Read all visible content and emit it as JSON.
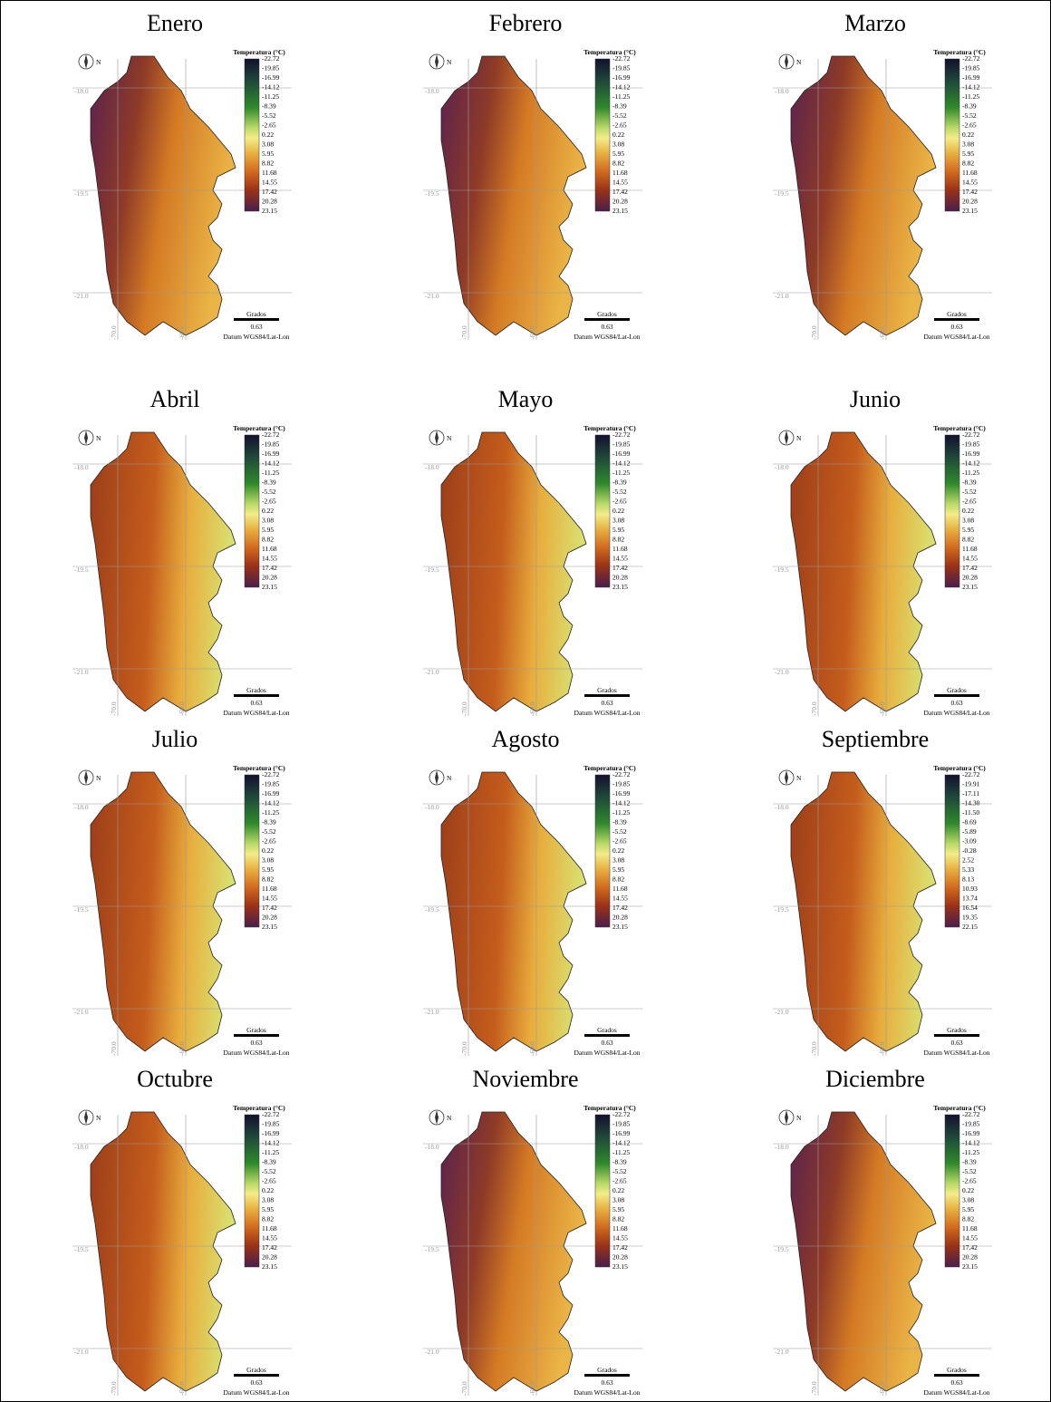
{
  "panels": [
    {
      "title": "Enero",
      "legend": [
        "-22.72",
        "-19.85",
        "-16.99",
        "-14.12",
        "-11.25",
        "-8.39",
        "-5.52",
        "-2.65",
        "0.22",
        "3.08",
        "5.95",
        "8.82",
        "11.68",
        "14.55",
        "17.42",
        "20.28",
        "23.15"
      ]
    },
    {
      "title": "Febrero",
      "legend": [
        "-22.72",
        "-19.85",
        "-16.99",
        "-14.12",
        "-11.25",
        "-8.39",
        "-5.52",
        "-2.65",
        "0.22",
        "3.08",
        "5.95",
        "8.82",
        "11.68",
        "14.55",
        "17.42",
        "20.28",
        "23.15"
      ]
    },
    {
      "title": "Marzo",
      "legend": [
        "-22.72",
        "-19.85",
        "-16.99",
        "-14.12",
        "-11.25",
        "-8.39",
        "-5.52",
        "-2.65",
        "0.22",
        "3.08",
        "5.95",
        "8.82",
        "11.68",
        "14.55",
        "17.42",
        "20.28",
        "23.15"
      ]
    },
    {
      "title": "Abril",
      "legend": [
        "-22.72",
        "-19.85",
        "-16.99",
        "-14.12",
        "-11.25",
        "-8.39",
        "-5.52",
        "-2.65",
        "0.22",
        "3.08",
        "5.95",
        "8.82",
        "11.68",
        "14.55",
        "17.42",
        "20.28",
        "23.15"
      ]
    },
    {
      "title": "Mayo",
      "legend": [
        "-22.72",
        "-19.85",
        "-16.99",
        "-14.12",
        "-11.25",
        "-8.39",
        "-5.52",
        "-2.65",
        "0.22",
        "3.08",
        "5.95",
        "8.82",
        "11.68",
        "14.55",
        "17.42",
        "20.28",
        "23.15"
      ]
    },
    {
      "title": "Junio",
      "legend": [
        "-22.72",
        "-19.85",
        "-16.99",
        "-14.12",
        "-11.25",
        "-8.39",
        "-5.52",
        "-2.65",
        "0.22",
        "3.08",
        "5.95",
        "8.82",
        "11.68",
        "14.55",
        "17.42",
        "20.28",
        "23.15"
      ]
    },
    {
      "title": "Julio",
      "legend": [
        "-22.72",
        "-19.85",
        "-16.99",
        "-14.12",
        "-11.25",
        "-8.39",
        "-5.52",
        "-2.65",
        "0.22",
        "3.08",
        "5.95",
        "8.82",
        "11.68",
        "14.55",
        "17.42",
        "20.28",
        "23.15"
      ]
    },
    {
      "title": "Agosto",
      "legend": [
        "-22.72",
        "-19.85",
        "-16.99",
        "-14.12",
        "-11.25",
        "-8.39",
        "-5.52",
        "-2.65",
        "0.22",
        "3.08",
        "5.95",
        "8.82",
        "11.68",
        "14.55",
        "17.42",
        "20.28",
        "23.15"
      ]
    },
    {
      "title": "Septiembre",
      "legend": [
        "-22.72",
        "-19.91",
        "-17.11",
        "-14.30",
        "-11.50",
        "-8.69",
        "-5.89",
        "-3.09",
        "-0.28",
        "2.52",
        "5.33",
        "8.13",
        "10.93",
        "13.74",
        "16.54",
        "19.35",
        "22.15"
      ]
    },
    {
      "title": "Octubre",
      "legend": [
        "-22.72",
        "-19.85",
        "-16.99",
        "-14.12",
        "-11.25",
        "-8.39",
        "-5.52",
        "-2.65",
        "0.22",
        "3.08",
        "5.95",
        "8.82",
        "11.68",
        "14.55",
        "17.42",
        "20.28",
        "23.15"
      ]
    },
    {
      "title": "Noviembre",
      "legend": [
        "-22.72",
        "-19.85",
        "-16.99",
        "-14.12",
        "-11.25",
        "-8.39",
        "-5.52",
        "-2.65",
        "0.22",
        "3.08",
        "5.95",
        "8.82",
        "11.68",
        "14.55",
        "17.42",
        "20.28",
        "23.15"
      ]
    },
    {
      "title": "Diciembre",
      "legend": [
        "-22.72",
        "-19.85",
        "-16.99",
        "-14.12",
        "-11.25",
        "-8.39",
        "-5.52",
        "-2.65",
        "0.22",
        "3.08",
        "5.95",
        "8.82",
        "11.68",
        "14.55",
        "17.42",
        "20.28",
        "23.15"
      ]
    }
  ],
  "legend_title": "Temperatura (°C)",
  "north": "N",
  "lat_labels": [
    "-18.0",
    "-19.5",
    "-21.0"
  ],
  "lon_labels": [
    "-70.0",
    "-69.0"
  ],
  "scale_label": "Grados",
  "scale_value": "0.63",
  "datum": "Datum WGS84/Lat-Lon"
}
